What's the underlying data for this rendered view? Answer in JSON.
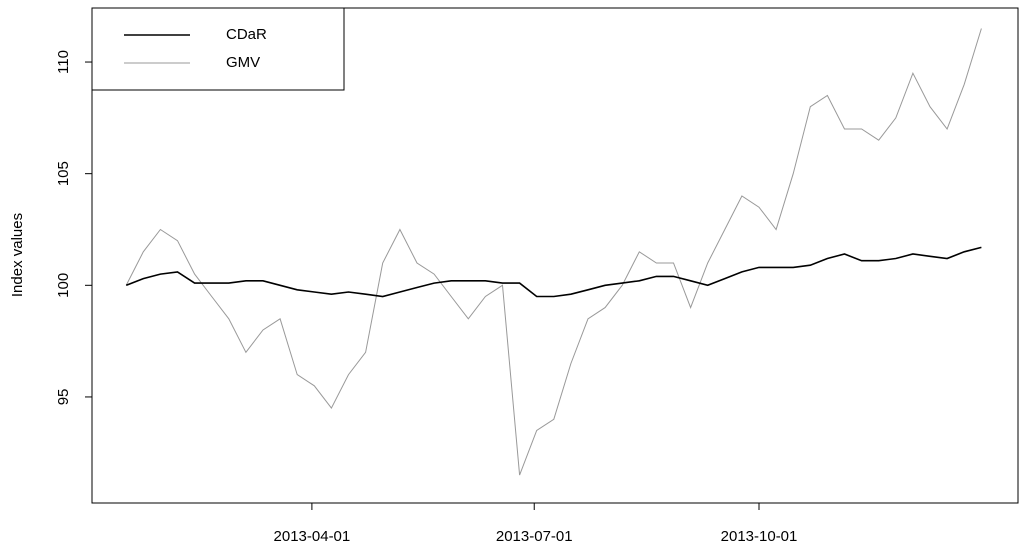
{
  "chart_data": {
    "type": "line",
    "y_label": "Index values",
    "x": [
      "2013-01-15",
      "2013-01-22",
      "2013-01-29",
      "2013-02-05",
      "2013-02-12",
      "2013-02-19",
      "2013-02-26",
      "2013-03-05",
      "2013-03-12",
      "2013-03-19",
      "2013-03-26",
      "2013-04-02",
      "2013-04-09",
      "2013-04-16",
      "2013-04-23",
      "2013-04-30",
      "2013-05-07",
      "2013-05-14",
      "2013-05-21",
      "2013-05-28",
      "2013-06-04",
      "2013-06-11",
      "2013-06-18",
      "2013-06-25",
      "2013-07-02",
      "2013-07-09",
      "2013-07-16",
      "2013-07-23",
      "2013-07-30",
      "2013-08-06",
      "2013-08-13",
      "2013-08-20",
      "2013-08-27",
      "2013-09-03",
      "2013-09-10",
      "2013-09-17",
      "2013-09-24",
      "2013-10-01",
      "2013-10-08",
      "2013-10-15",
      "2013-10-22",
      "2013-10-29",
      "2013-11-05",
      "2013-11-12",
      "2013-11-19",
      "2013-11-26",
      "2013-12-03",
      "2013-12-10",
      "2013-12-17",
      "2013-12-24",
      "2013-12-31"
    ],
    "series": [
      {
        "name": "CDaR",
        "color": "#000000",
        "values": [
          100,
          100.3,
          100.5,
          100.6,
          100.1,
          100.1,
          100.1,
          100.2,
          100.2,
          100,
          99.8,
          99.7,
          99.6,
          99.7,
          99.6,
          99.5,
          99.7,
          99.9,
          100.1,
          100.2,
          100.2,
          100.2,
          100.1,
          100.1,
          99.5,
          99.5,
          99.6,
          99.8,
          100,
          100.1,
          100.2,
          100.4,
          100.4,
          100.2,
          100,
          100.3,
          100.6,
          100.8,
          100.8,
          100.8,
          100.9,
          101.2,
          101.4,
          101.1,
          101.1,
          101.2,
          101.4,
          101.3,
          101.2,
          101.5,
          101.7
        ]
      },
      {
        "name": "GMV",
        "color": "#999999",
        "values": [
          100,
          101.5,
          102.5,
          102,
          100.5,
          99.5,
          98.5,
          97,
          98,
          98.5,
          96,
          95.5,
          94.5,
          96,
          97,
          101,
          102.5,
          101,
          100.5,
          99.5,
          98.5,
          99.5,
          100,
          91.5,
          93.5,
          94,
          96.5,
          98.5,
          99,
          100,
          101.5,
          101,
          101,
          99,
          101,
          102.5,
          104,
          103.5,
          102.5,
          105,
          108,
          108.5,
          107,
          107,
          106.5,
          107.5,
          109.5,
          108,
          107,
          109,
          111.5
        ]
      }
    ],
    "xlim": [
      "2013-01-01",
      "2014-01-15"
    ],
    "xticks": [
      "2013-04-01",
      "2013-07-01",
      "2013-10-01"
    ],
    "ylim": [
      90.25,
      112.42
    ],
    "yticks": [
      95,
      100,
      105,
      110
    ],
    "legend": "topleft"
  }
}
